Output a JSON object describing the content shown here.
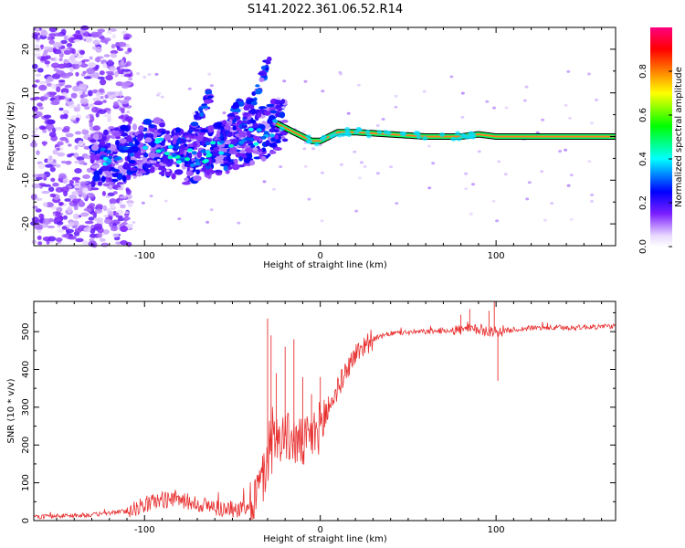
{
  "title": "S141.2022.361.06.52.R14",
  "colorbar": {
    "label": "Normalized spectral amplitude",
    "ticks": [
      0.0,
      0.2,
      0.4,
      0.6,
      0.8
    ],
    "tick_labels": [
      "0.0",
      "0.2",
      "0.4",
      "0.6",
      "0.8"
    ],
    "range": [
      0,
      1
    ],
    "colormap": [
      "#ffffff",
      "#e8d8ff",
      "#7b1fff",
      "#0000ff",
      "#00ffff",
      "#00ff00",
      "#ffff00",
      "#ff8000",
      "#ff0000",
      "#ff0080"
    ]
  },
  "chart_data": [
    {
      "type": "heatmap",
      "xlabel": "Height of straight line (km)",
      "ylabel": "Frequency (Hz)",
      "xlim": [
        -163,
        168
      ],
      "ylim": [
        -25,
        25
      ],
      "x_ticks": [
        -100,
        0,
        100
      ],
      "x_tick_labels": [
        "-100",
        "0",
        "100"
      ],
      "y_ticks": [
        -20,
        -10,
        0,
        10,
        20
      ],
      "y_tick_labels": [
        "-20",
        "-10",
        "0",
        "10",
        "20"
      ],
      "ridge": {
        "x": [
          -125,
          -115,
          -105,
          -95,
          -85,
          -75,
          -60,
          -45,
          -30,
          -25,
          -20,
          -10,
          -5,
          0,
          10,
          20,
          40,
          60,
          80,
          90,
          100,
          120,
          140,
          168
        ],
        "y": [
          -5,
          -4,
          -3,
          -2,
          -3,
          -5,
          -3,
          -1,
          1,
          3,
          2,
          0,
          -1,
          -1,
          1,
          1,
          0.5,
          0,
          0,
          0.5,
          0,
          0,
          0,
          0
        ]
      },
      "streaks": [
        {
          "x": [
            -80,
            -62
          ],
          "y": [
            -5,
            10
          ]
        },
        {
          "x": [
            -65,
            -45
          ],
          "y": [
            -7,
            9
          ]
        },
        {
          "x": [
            -55,
            -30
          ],
          "y": [
            -8,
            17
          ]
        }
      ]
    },
    {
      "type": "line",
      "xlabel": "Height of straight line (km)",
      "ylabel": "SNR (10 * v/v)",
      "xlim": [
        -163,
        168
      ],
      "ylim": [
        0,
        580
      ],
      "x_ticks": [
        -100,
        0,
        100
      ],
      "x_tick_labels": [
        "-100",
        "0",
        "100"
      ],
      "y_ticks": [
        0,
        100,
        200,
        300,
        400,
        500
      ],
      "y_tick_labels": [
        "0",
        "100",
        "200",
        "300",
        "400",
        "500"
      ],
      "color": "#e83030",
      "trend": {
        "x": [
          -163,
          -130,
          -110,
          -95,
          -85,
          -70,
          -55,
          -45,
          -38,
          -32,
          -27,
          -22,
          -15,
          -10,
          -5,
          0,
          5,
          10,
          15,
          20,
          25,
          30,
          40,
          50,
          60,
          80,
          90,
          100,
          120,
          140,
          168
        ],
        "y": [
          10,
          15,
          25,
          50,
          60,
          45,
          30,
          30,
          50,
          120,
          200,
          230,
          210,
          200,
          220,
          250,
          300,
          350,
          400,
          440,
          465,
          480,
          495,
          498,
          500,
          505,
          505,
          500,
          510,
          510,
          515
        ]
      },
      "spikes": {
        "x": [
          -30,
          -28,
          -25,
          -20,
          -15,
          -10,
          -5,
          0,
          80,
          85,
          96,
          99,
          101
        ],
        "y": [
          535,
          490,
          390,
          460,
          480,
          380,
          335,
          380,
          545,
          560,
          555,
          580,
          370
        ]
      }
    }
  ]
}
